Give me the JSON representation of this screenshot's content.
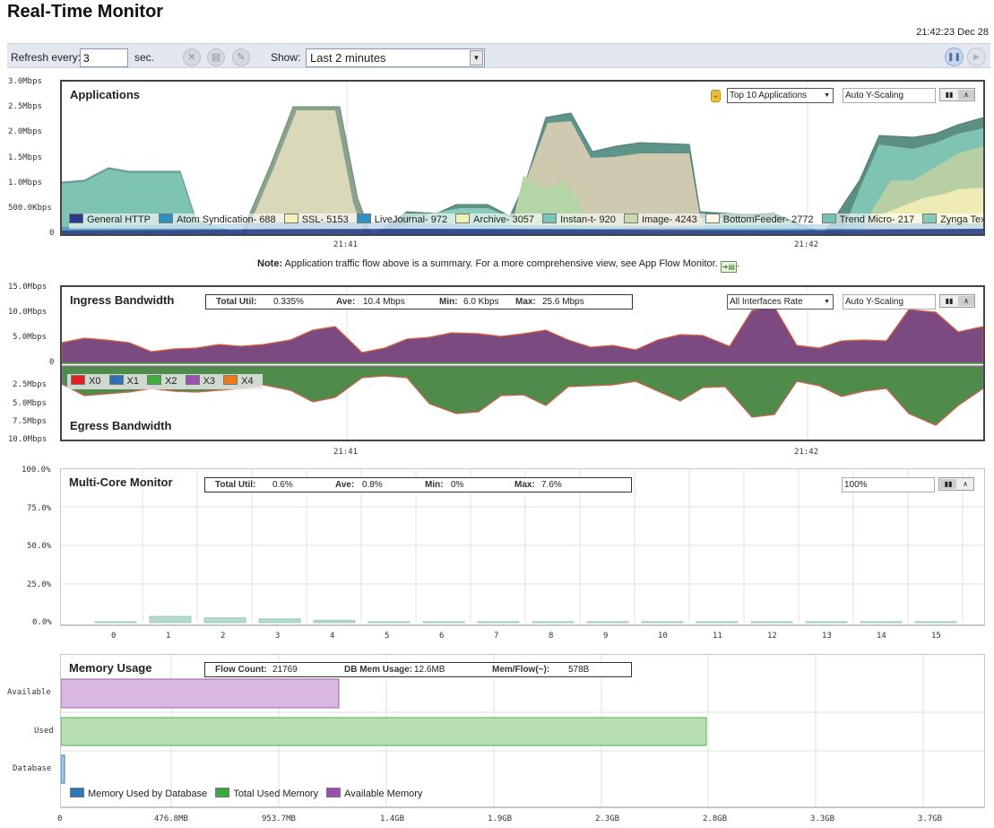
{
  "header": {
    "title": "Real-Time Monitor",
    "timestamp": "21:42:23 Dec 28"
  },
  "toolbar": {
    "refresh_label": "Refresh every:",
    "refresh_value": "3",
    "sec_label": "sec.",
    "show_label": "Show:",
    "show_value": "Last 2 minutes",
    "icons": [
      "clear-icon",
      "print-icon",
      "settings-icon"
    ],
    "pause_icon": "pause-icon",
    "play_icon": "play-icon"
  },
  "applications": {
    "title": "Applications",
    "filter": "Top 10 Applications",
    "scaling": "Auto Y-Scaling",
    "note_bold": "Note:",
    "note_text": " Application traffic flow above is a summary. For a more comprehensive view, see App Flow Monitor.",
    "legend": [
      {
        "label": "General HTTP",
        "color": "#2b3a8c"
      },
      {
        "label": "Atom Syndication- 688",
        "color": "#2f8fc0"
      },
      {
        "label": "SSL- 5153",
        "color": "#f2f2b8"
      },
      {
        "label": "LiveJournal- 972",
        "color": "#2d94c2"
      },
      {
        "label": "Archive- 3057",
        "color": "#eef0b4"
      },
      {
        "label": "Instan-t- 920",
        "color": "#79c6b6"
      },
      {
        "label": "Image- 4243",
        "color": "#c7dbb0"
      },
      {
        "label": "BottomFeeder- 2772",
        "color": "#fbf9e6"
      },
      {
        "label": "Trend Micro- 217",
        "color": "#78c2b1"
      },
      {
        "label": "Zynga Texas Holdem-",
        "color": "#88c9b7"
      }
    ],
    "y_ticks": [
      "3.0Mbps",
      "2.5Mbps",
      "2.0Mbps",
      "1.5Mbps",
      "1.0Mbps",
      "500.0Kbps",
      "0"
    ],
    "x_ticks": [
      "21:41",
      "21:42"
    ]
  },
  "bandwidth": {
    "ingress_title": "Ingress Bandwidth",
    "egress_title": "Egress Bandwidth",
    "stats": {
      "total_label": "Total Util:",
      "total_value": "0.335%",
      "ave_label": "Ave:",
      "ave_value": "10.4 Mbps",
      "min_label": "Min:",
      "min_value": "6.0 Kbps",
      "max_label": "Max:",
      "max_value": "25.6 Mbps"
    },
    "filter": "All Interfaces Rate",
    "scaling": "Auto Y-Scaling",
    "legend": [
      {
        "label": "X0",
        "color": "#e02020"
      },
      {
        "label": "X1",
        "color": "#2f6fb8"
      },
      {
        "label": "X2",
        "color": "#3dae3d"
      },
      {
        "label": "X3",
        "color": "#9b4fb0"
      },
      {
        "label": "X4",
        "color": "#f07a1a"
      }
    ],
    "y_ticks_top": [
      "15.0Mbps",
      "10.0Mbps",
      "5.0Mbps",
      "0"
    ],
    "y_ticks_bottom": [
      "2.5Mbps",
      "5.0Mbps",
      "7.5Mbps",
      "10.0Mbps"
    ],
    "x_ticks": [
      "21:41",
      "21:42"
    ]
  },
  "multicore": {
    "title": "Multi-Core Monitor",
    "stats": {
      "total_label": "Total Util:",
      "total_value": "0.6%",
      "ave_label": "Ave:",
      "ave_value": "0.8%",
      "min_label": "Min:",
      "min_value": "0%",
      "max_label": "Max:",
      "max_value": "7.6%"
    },
    "scale": "100%",
    "y_ticks": [
      "100.0%",
      "75.0%",
      "50.0%",
      "25.0%",
      "0.0%"
    ],
    "cores": [
      "0",
      "1",
      "2",
      "3",
      "4",
      "5",
      "6",
      "7",
      "8",
      "9",
      "10",
      "11",
      "12",
      "13",
      "14",
      "15"
    ],
    "values": [
      0.3,
      4.0,
      3.1,
      2.4,
      1.4,
      0.4,
      0.3,
      0.3,
      0.3,
      0.3,
      0.3,
      0.3,
      0.3,
      0.3,
      0.3,
      0.3
    ]
  },
  "memory": {
    "title": "Memory Usage",
    "stats": {
      "flow_label": "Flow Count:",
      "flow_value": "21769",
      "db_label": "DB Mem Usage:",
      "db_value": "12.6MB",
      "per_label": "Mem/Flow(~):",
      "per_value": "578B"
    },
    "rows": [
      "Available",
      "Used",
      "Database"
    ],
    "x_ticks": [
      "0",
      "476.8MB",
      "953.7MB",
      "1.4GB",
      "1.9GB",
      "2.3GB",
      "2.8GB",
      "3.3GB",
      "3.7GB"
    ],
    "legend": [
      {
        "label": "Memory Used by Database",
        "color": "#2f78b8"
      },
      {
        "label": "Total Used Memory",
        "color": "#3aa83a"
      },
      {
        "label": "Available Memory",
        "color": "#9b4fb0"
      }
    ],
    "bars_fraction_of_axis": {
      "Available": 0.3,
      "Used": 0.7,
      "Database": 0.004
    }
  }
}
